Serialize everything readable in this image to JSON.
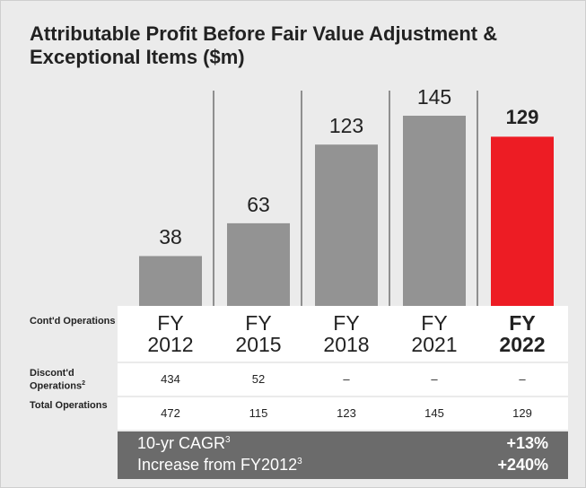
{
  "chart_data": {
    "type": "bar",
    "title": "Attributable Profit Before Fair Value Adjustment & Exceptional Items ($m)",
    "categories": [
      "FY 2012",
      "FY 2015",
      "FY 2018",
      "FY 2021",
      "FY 2022"
    ],
    "values": [
      38,
      63,
      123,
      145,
      129
    ],
    "colors": [
      "#939393",
      "#939393",
      "#939393",
      "#939393",
      "#ed1c24"
    ]
  },
  "table": {
    "rows": [
      {
        "label": "Cont'd Operations"
      },
      {
        "label": "Discont'd Operations",
        "note": "2",
        "values": [
          "434",
          "52",
          "–",
          "–",
          "–"
        ]
      },
      {
        "label": "Total Operations",
        "values": [
          472,
          115,
          123,
          145,
          129
        ]
      }
    ]
  },
  "summary": [
    {
      "label": "10-yr CAGR",
      "note": "3",
      "value": "+13%"
    },
    {
      "label": "Increase from FY2012",
      "note": "3",
      "value": "+240%"
    }
  ]
}
